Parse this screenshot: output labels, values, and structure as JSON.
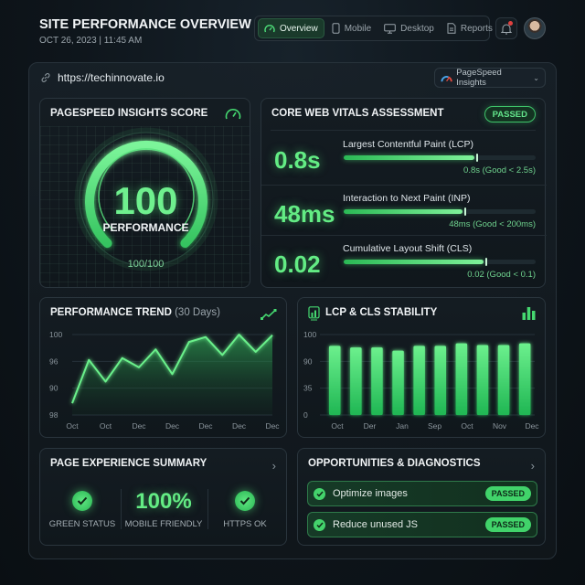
{
  "header": {
    "title": "SITE PERFORMANCE OVERVIEW",
    "datetime": "OCT 26, 2023 | 11:45 AM",
    "nav": [
      {
        "label": "Overview",
        "icon": "gauge-icon",
        "active": true
      },
      {
        "label": "Mobile",
        "icon": "phone-icon",
        "active": false
      },
      {
        "label": "Desktop",
        "icon": "monitor-icon",
        "active": false
      },
      {
        "label": "Reports",
        "icon": "document-icon",
        "active": false
      }
    ],
    "notification_icon": "bell-icon",
    "avatar": "user-avatar"
  },
  "site": {
    "url": "https://techinnovate.io",
    "source_select": "PageSpeed Insights"
  },
  "score_panel": {
    "title": "PAGESPEED INSIGHTS SCORE",
    "score": "100",
    "label": "PERFORMANCE",
    "sub": "100/100",
    "accent": "#5ce67f"
  },
  "cwv": {
    "title": "CORE WEB VITALS ASSESSMENT",
    "status": "PASSED",
    "metrics": [
      {
        "value": "0.8s",
        "name": "Largest Contentful Paint (LCP)",
        "note": "0.8s (Good < 2.5s)",
        "fill_pct": 68,
        "tick_pct": 69
      },
      {
        "value": "48ms",
        "name": "Interaction to Next Paint (INP)",
        "note": "48ms (Good < 200ms)",
        "fill_pct": 62,
        "tick_pct": 63
      },
      {
        "value": "0.02",
        "name": "Cumulative Layout Shift (CLS)",
        "note": "0.02 (Good < 0.1)",
        "fill_pct": 73,
        "tick_pct": 74
      }
    ]
  },
  "trend": {
    "title": "PERFORMANCE TREND",
    "subtitle": "(30 Days)"
  },
  "stability": {
    "title": "LCP & CLS STABILITY"
  },
  "page_experience": {
    "title": "PAGE EXPERIENCE SUMMARY",
    "items": [
      {
        "type": "check",
        "label": "GREEN STATUS"
      },
      {
        "type": "value",
        "value": "100%",
        "label": "MOBILE FRIENDLY"
      },
      {
        "type": "check",
        "label": "HTTPS OK"
      }
    ]
  },
  "opportunities": {
    "title": "OPPORTUNITIES & DIAGNOSTICS",
    "items": [
      {
        "label": "Optimize images",
        "status": "PASSED"
      },
      {
        "label": "Reduce unused JS",
        "status": "PASSED"
      }
    ]
  },
  "chart_data": [
    {
      "type": "area",
      "title": "PERFORMANCE TREND (30 Days)",
      "xlabel": "",
      "ylabel": "",
      "y_tick_labels": [
        "100",
        "96",
        "90",
        "98"
      ],
      "x_tick_labels": [
        "Oct",
        "Oct",
        "Dec",
        "Dec",
        "Dec",
        "Dec",
        "Dec"
      ],
      "grid": true,
      "series": [
        {
          "name": "Performance",
          "values": [
            88.9,
            95.9,
            92.4,
            96.2,
            94.7,
            97.6,
            93.6,
            98.8,
            99.6,
            96.7,
            100,
            97.2,
            99.9
          ]
        }
      ],
      "ylim": [
        87,
        100
      ],
      "note": "values estimated from gridline positions; tick labels as rendered"
    },
    {
      "type": "bar",
      "title": "LCP & CLS STABILITY",
      "y_tick_labels": [
        "100",
        "90",
        "35",
        "0"
      ],
      "x_tick_labels": [
        "Oct",
        "Der",
        "Jan",
        "Sep",
        "Oct",
        "Nov",
        "Dec"
      ],
      "grid": true,
      "values": [
        86,
        84,
        84,
        80,
        86,
        86,
        89,
        87,
        87,
        89
      ],
      "ylim": [
        0,
        100
      ],
      "note": "10 bars; heights estimated as percent of axis height"
    }
  ]
}
